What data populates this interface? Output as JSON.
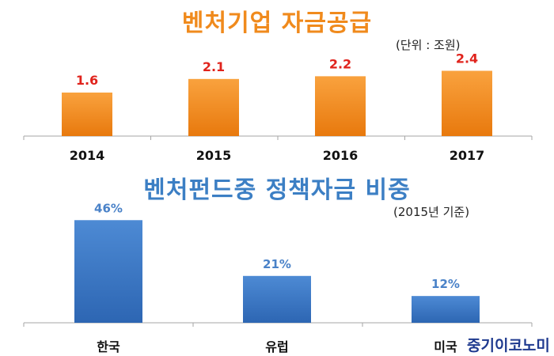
{
  "titles": {
    "chart1_title": "벤처기업 자금공급",
    "chart1_unit": "(단위 : 조원)",
    "chart2_title": "벤처펀드중 정책자금 비중",
    "chart2_unit": "(2015년 기준)",
    "watermark": "중기이코노미"
  },
  "colors": {
    "orange_title": "#f08a1c",
    "orange_bar": "#f28c1e",
    "orange_label": "#e0231c",
    "blue_title": "#3c7fc4",
    "blue_bar": "#3a76c4",
    "blue_label": "#4a82c8"
  },
  "chart_data": [
    {
      "type": "bar",
      "title": "벤처기업 자금공급",
      "unit": "(단위 : 조원)",
      "categories": [
        "2014",
        "2015",
        "2016",
        "2017"
      ],
      "values": [
        1.6,
        2.1,
        2.2,
        2.4
      ],
      "value_labels": [
        "1.6",
        "2.1",
        "2.2",
        "2.4"
      ],
      "ylim": [
        0,
        3.2
      ],
      "grid": false,
      "legend": "none"
    },
    {
      "type": "bar",
      "title": "벤처펀드중 정책자금 비중",
      "unit": "(2015년 기준)",
      "categories": [
        "한국",
        "유럽",
        "미국"
      ],
      "values": [
        46,
        21,
        12
      ],
      "value_labels": [
        "46%",
        "21%",
        "12%"
      ],
      "ylim": [
        0,
        50
      ],
      "grid": false,
      "legend": "none"
    }
  ]
}
